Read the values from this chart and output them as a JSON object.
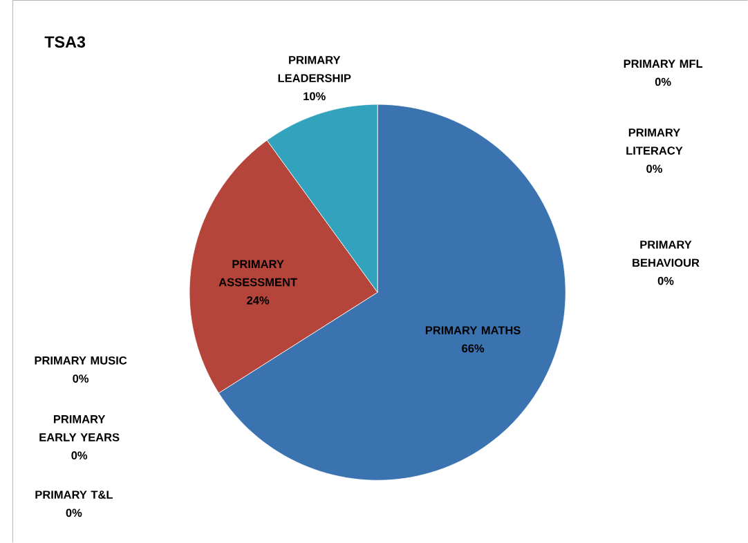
{
  "chart_data": {
    "type": "pie",
    "title": "TSA3",
    "categories": [
      "PRIMARY MATHS",
      "PRIMARY ASSESSMENT",
      "PRIMARY LEADERSHIP",
      "PRIMARY BEHAVIOUR",
      "PRIMARY LITERACY",
      "PRIMARY MFL",
      "PRIMARY MUSIC",
      "PRIMARY EARLY YEARS",
      "PRIMARY T&L"
    ],
    "values": [
      66,
      24,
      10,
      0,
      0,
      0,
      0,
      0,
      0
    ],
    "colors": [
      "#3b73b0",
      "#b5443b",
      "#32a2bd",
      null,
      null,
      null,
      null,
      null,
      null
    ],
    "value_labels": [
      "66%",
      "24%",
      "10%",
      "0%",
      "0%",
      "0%",
      "0%",
      "0%",
      "0%"
    ]
  }
}
